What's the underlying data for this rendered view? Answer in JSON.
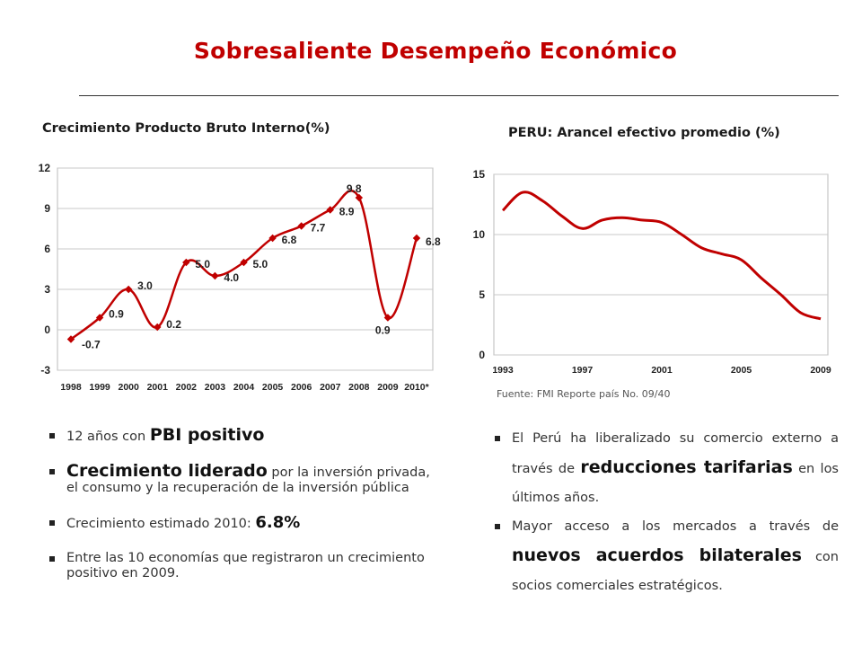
{
  "title": "Sobresaliente Desempeño Económico",
  "gdp": {
    "title": "Crecimiento Producto Bruto Interno(%)",
    "accent": "#c00000"
  },
  "tariff": {
    "title": "PERU: Arancel efectivo promedio (%)",
    "source": "Fuente:  FMI Reporte país No. 09/40"
  },
  "bullets_left": [
    {
      "pre": "12 años con ",
      "em": "PBI positivo",
      "post": ""
    },
    {
      "pre": "",
      "em": "Crecimiento liderado",
      "post": " por la inversión privada, el consumo y la recuperación de la inversión pública"
    },
    {
      "pre": "Crecimiento estimado 2010: ",
      "em": "6.8%",
      "post": ""
    },
    {
      "pre": "Entre las 10 economías que registraron un crecimiento positivo en 2009.",
      "em": "",
      "post": ""
    }
  ],
  "bullets_right": [
    {
      "pre": "El Perú ha liberalizado su comercio externo a través de ",
      "em": "reducciones tarifarias",
      "post": " en los últimos años."
    },
    {
      "pre": "Mayor acceso a los mercados a través de ",
      "em": "nuevos acuerdos bilaterales",
      "post": " con socios comerciales estratégicos."
    }
  ],
  "chart_data": [
    {
      "type": "line",
      "title": "Crecimiento Producto Bruto Interno(%)",
      "categories": [
        "1998",
        "1999",
        "2000",
        "2001",
        "2002",
        "2003",
        "2004",
        "2005",
        "2006",
        "2007",
        "2008",
        "2009",
        "2010*"
      ],
      "values": [
        -0.7,
        0.9,
        3.0,
        0.2,
        5.0,
        4.0,
        5.0,
        6.8,
        7.7,
        8.9,
        9.8,
        0.9,
        6.8
      ],
      "labels": [
        "-0.7",
        "0.9",
        "3.0",
        "0.2",
        "5.0",
        "4.0",
        "5.0",
        "6.8",
        "7.7",
        "8.9",
        "9.8",
        "0.9",
        "6.8"
      ],
      "yticks": [
        12,
        9,
        6,
        3,
        0,
        -3
      ],
      "ylim": [
        -3,
        12
      ],
      "grid": true,
      "color": "#c00000"
    },
    {
      "type": "line",
      "title": "PERU: Arancel efectivo promedio (%)",
      "x": [
        1993,
        1994,
        1995,
        1996,
        1997,
        1998,
        1999,
        2000,
        2001,
        2002,
        2003,
        2004,
        2005,
        2006,
        2007,
        2008,
        2009
      ],
      "values": [
        12.0,
        13.5,
        12.8,
        11.5,
        10.5,
        11.2,
        11.4,
        11.2,
        11.0,
        10.0,
        8.9,
        8.4,
        7.9,
        6.4,
        5.0,
        3.5,
        3.0
      ],
      "xticks": [
        "1993",
        "1997",
        "2001",
        "2005",
        "2009"
      ],
      "yticks": [
        15,
        10,
        5,
        0
      ],
      "ylim": [
        0,
        15
      ],
      "grid": true,
      "color": "#c00000"
    }
  ]
}
